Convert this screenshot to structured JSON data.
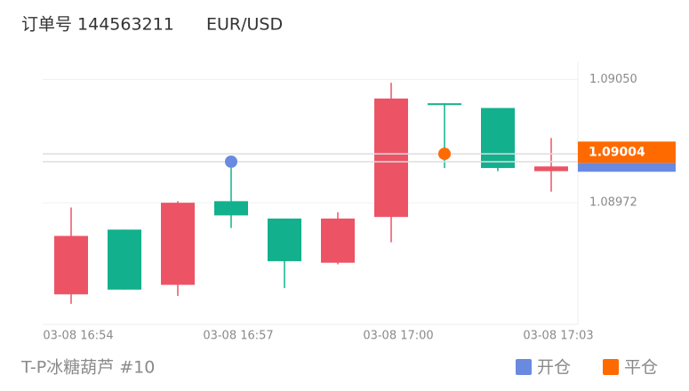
{
  "chart_data": {
    "type": "candlestick",
    "title": "订单号 144563211",
    "subtitle": "EUR/USD",
    "footer": "T-P冰糖葫芦 #10",
    "categories": [
      "03-08 16:54",
      null,
      null,
      "03-08 16:57",
      null,
      null,
      "03-08 17:00",
      null,
      null,
      "03-08 17:03"
    ],
    "open": [
      1.08914,
      1.08955,
      1.0892,
      1.08973,
      1.08962,
      1.08934,
      1.08963,
      1.09035,
      1.09032,
      1.08992
    ],
    "high": [
      1.08969,
      1.08955,
      1.08973,
      1.08994,
      1.08962,
      1.08966,
      1.09048,
      1.09035,
      1.09032,
      1.09013
    ],
    "low": [
      1.08908,
      1.08917,
      1.08913,
      1.08956,
      1.08918,
      1.08933,
      1.08947,
      1.08994,
      1.08992,
      1.08979
    ],
    "close": [
      1.08951,
      1.08917,
      1.08972,
      1.08964,
      1.08935,
      1.08962,
      1.09038,
      1.09034,
      1.08994,
      1.08995
    ],
    "up_color": "#ec5466",
    "down_color": "#12b08d",
    "series": [
      {
        "name": "开仓",
        "color": "#6a8ae0",
        "values": [
          null,
          null,
          null,
          1.08998,
          null,
          null,
          null,
          null,
          null,
          null
        ]
      },
      {
        "name": "平仓",
        "color": "#ff6a00",
        "values": [
          null,
          null,
          null,
          null,
          null,
          null,
          null,
          1.09003,
          null,
          null
        ]
      }
    ],
    "current_price": {
      "value": 1.09004,
      "color": "#ff6a00"
    },
    "ylim": [
      1.08895,
      1.09061
    ],
    "yticks": [
      1.08972,
      {
        "value": 1.0905,
        "label": "1.09050"
      }
    ],
    "grid": true
  }
}
